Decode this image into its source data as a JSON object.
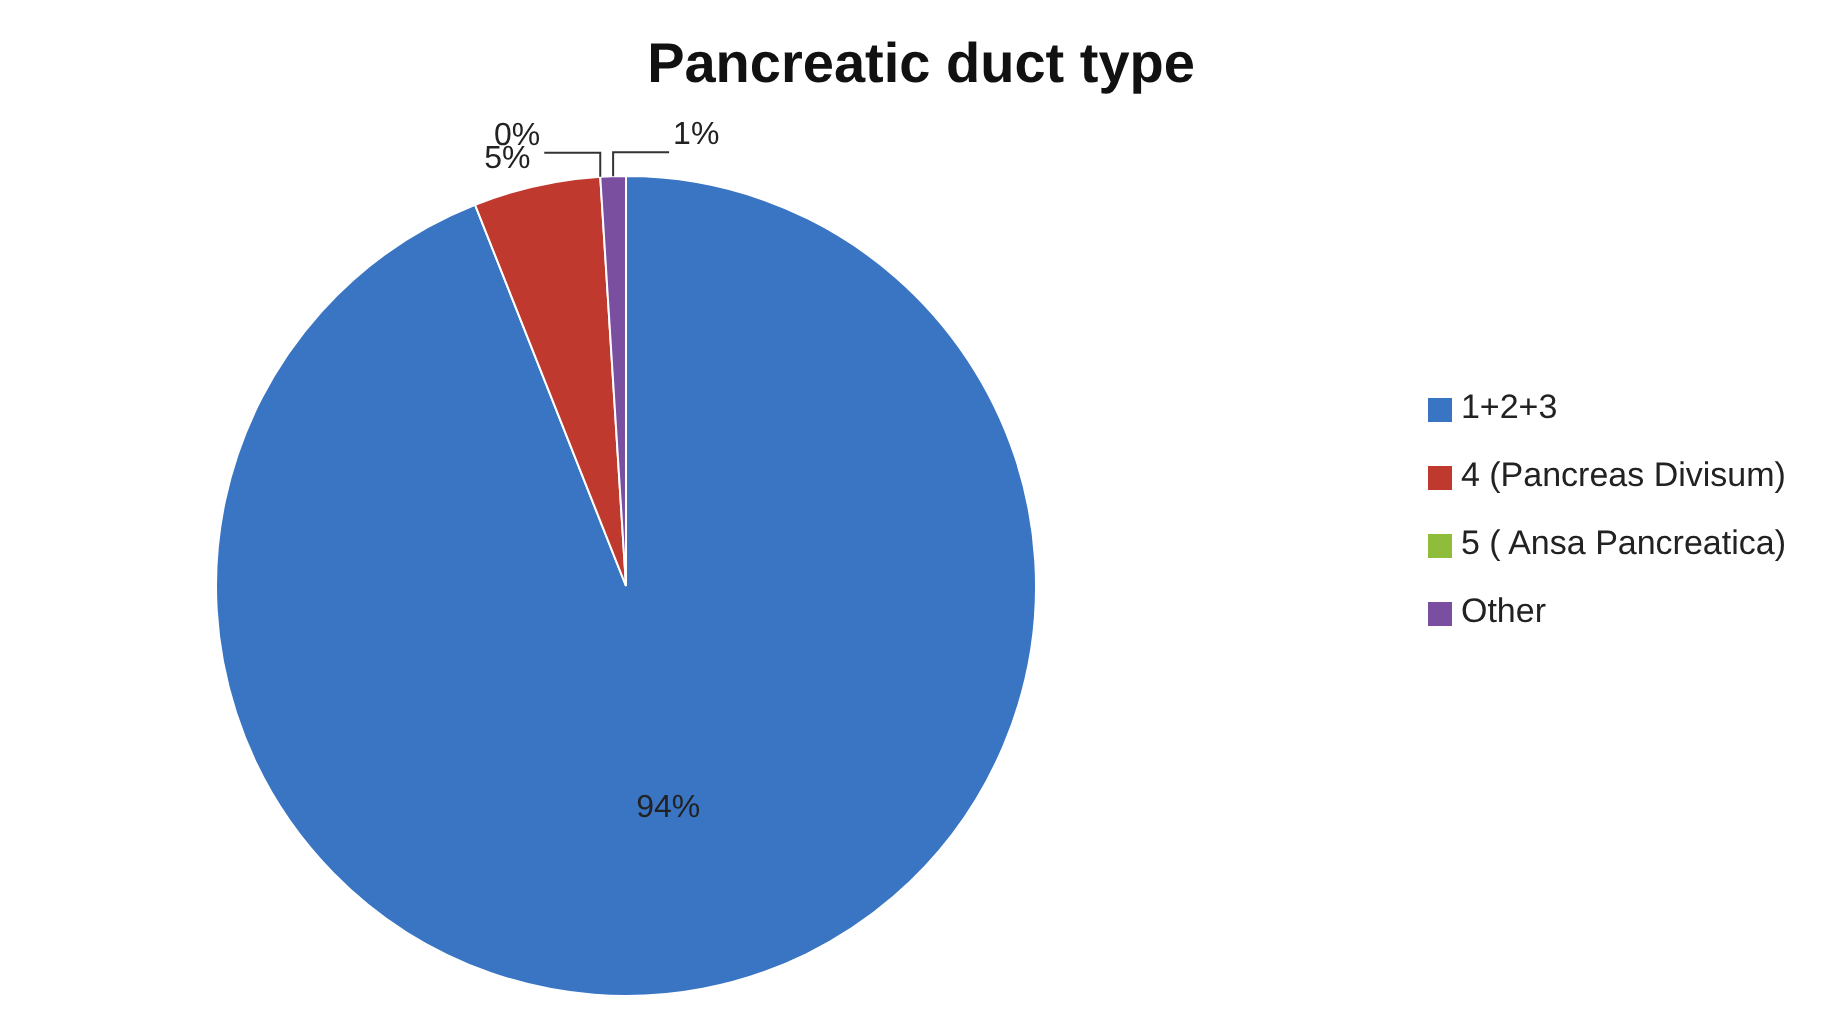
{
  "chart_data": {
    "type": "pie",
    "title": "Pancreatic duct type",
    "categories": [
      "1+2+3",
      "4 (Pancreas Divisum)",
      "5 ( Ansa Pancreatica)",
      "Other"
    ],
    "values": [
      94,
      5,
      0,
      1
    ],
    "value_labels": [
      "94%",
      "5%",
      "0%",
      "1%"
    ],
    "colors": [
      "#3a75c4",
      "#c0392f",
      "#8fbc3a",
      "#7a4fa0"
    ],
    "legend": "right"
  }
}
